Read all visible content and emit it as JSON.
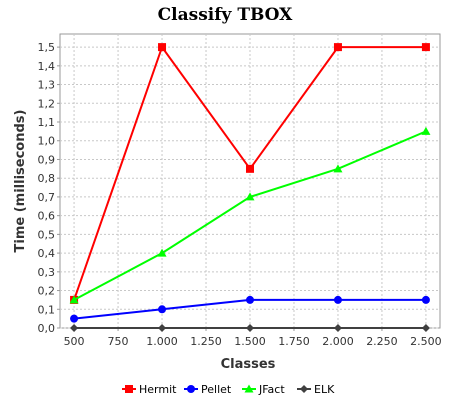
{
  "chart_data": {
    "type": "line",
    "title": "Classify TBOX",
    "xlabel": "Classes",
    "ylabel": "Time (milliseconds)",
    "x": [
      500,
      1000,
      1500,
      2000,
      2500
    ],
    "x_tick_labels": [
      "500",
      "750",
      "1.000",
      "1.250",
      "1.500",
      "1.750",
      "2.000",
      "2.250",
      "2.500"
    ],
    "x_tick_values": [
      500,
      750,
      1000,
      1250,
      1500,
      1750,
      2000,
      2250,
      2500
    ],
    "xlim": [
      420,
      2580
    ],
    "y_tick_labels": [
      "0,0",
      "0,1",
      "0,2",
      "0,3",
      "0,4",
      "0,5",
      "0,6",
      "0,7",
      "0,8",
      "0,9",
      "1,0",
      "1,1",
      "1,2",
      "1,3",
      "1,4",
      "1,5"
    ],
    "y_tick_values": [
      0,
      0.1,
      0.2,
      0.3,
      0.4,
      0.5,
      0.6,
      0.7,
      0.8,
      0.9,
      1.0,
      1.1,
      1.2,
      1.3,
      1.4,
      1.5
    ],
    "ylim": [
      0,
      1.57
    ],
    "grid": true,
    "legend_position": "bottom",
    "series": [
      {
        "name": "Hermit",
        "color": "#ff0000",
        "marker": "square",
        "values": [
          0.15,
          1.5,
          0.85,
          1.5,
          1.5
        ]
      },
      {
        "name": "Pellet",
        "color": "#0000ff",
        "marker": "circle",
        "values": [
          0.05,
          0.1,
          0.15,
          0.15,
          0.15
        ]
      },
      {
        "name": "JFact",
        "color": "#00ff00",
        "marker": "triangle",
        "values": [
          0.15,
          0.4,
          0.7,
          0.85,
          1.05
        ]
      },
      {
        "name": "ELK",
        "color": "#404040",
        "marker": "diamond",
        "values": [
          0.0,
          0.0,
          0.0,
          0.0,
          0.0
        ]
      }
    ]
  }
}
